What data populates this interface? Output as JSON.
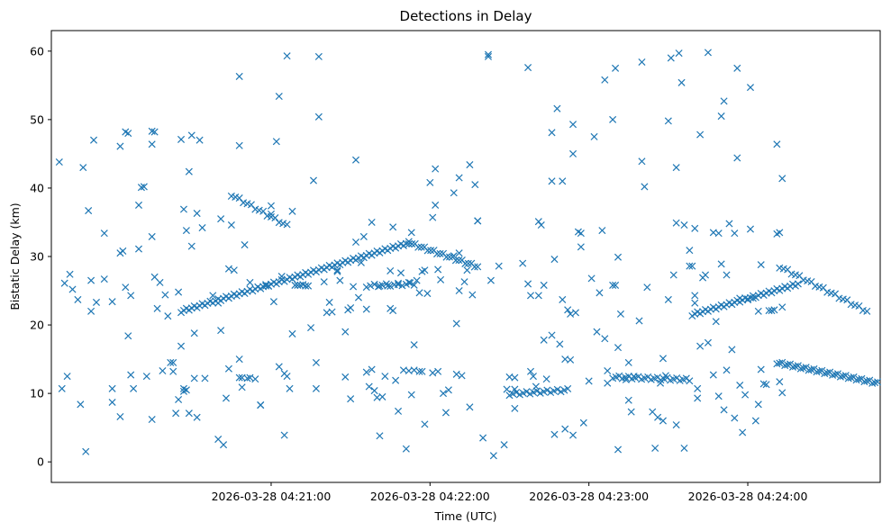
{
  "chart_data": {
    "type": "scatter",
    "title": "Detections in Delay",
    "xlabel": "Time (UTC)",
    "ylabel": "Bistatic Delay (km)",
    "marker": "x",
    "color": "#1f77b4",
    "x_unit": "seconds after 2026-03-28 04:20:00 UTC",
    "xlim": [
      -23,
      290
    ],
    "ylim": [
      -3,
      63
    ],
    "xticks": [
      {
        "value": 60,
        "label": "2026-03-28 04:21:00"
      },
      {
        "value": 120,
        "label": "2026-03-28 04:22:00"
      },
      {
        "value": 180,
        "label": "2026-03-28 04:23:00"
      },
      {
        "value": 240,
        "label": "2026-03-28 04:24:00"
      },
      {
        "value": 300,
        "label": "2026-03-28 04:25:00"
      }
    ],
    "yticks": [
      0,
      10,
      20,
      30,
      40,
      50,
      60
    ],
    "tracks": [
      {
        "name": "track-a",
        "x_start": 26,
        "y_start": 22.0,
        "x_end": 112,
        "y_end": 32.0,
        "step": 1.0
      },
      {
        "name": "track-b",
        "x_start": 112,
        "y_start": 32.0,
        "x_end": 138,
        "y_end": 28.5,
        "step": 1.2
      },
      {
        "name": "track-c",
        "x_start": 45,
        "y_start": 39.0,
        "x_end": 66,
        "y_end": 34.5,
        "step": 1.5
      },
      {
        "name": "track-d",
        "x_start": 219,
        "y_start": 21.5,
        "x_end": 259,
        "y_end": 26.0,
        "step": 1.0
      },
      {
        "name": "track-e",
        "x_start": 251,
        "y_start": 14.5,
        "x_end": 289,
        "y_end": 11.5,
        "step": 1.0
      },
      {
        "name": "track-f",
        "x_start": 150,
        "y_start": 9.9,
        "x_end": 172,
        "y_end": 10.5,
        "step": 1.3
      },
      {
        "name": "track-g",
        "x_start": 189,
        "y_start": 12.4,
        "x_end": 218,
        "y_end": 12.0,
        "step": 1.2
      },
      {
        "name": "track-h",
        "x_start": 96,
        "y_start": 25.7,
        "x_end": 114,
        "y_end": 26.0,
        "step": 1.5
      },
      {
        "name": "track-i",
        "x_start": 252,
        "y_start": 28.5,
        "x_end": 285,
        "y_end": 22.0,
        "step": 1.5
      }
    ],
    "points": [
      [
        -20,
        43.8
      ],
      [
        -19,
        10.7
      ],
      [
        -18,
        26.1
      ],
      [
        -17,
        12.5
      ],
      [
        -16,
        27.4
      ],
      [
        -15,
        25.2
      ],
      [
        -13,
        23.7
      ],
      [
        -12,
        8.4
      ],
      [
        -11,
        43.0
      ],
      [
        -10,
        1.5
      ],
      [
        -9,
        36.7
      ],
      [
        -8,
        22.0
      ],
      [
        -8,
        26.5
      ],
      [
        -7,
        47.0
      ],
      [
        -6,
        23.3
      ],
      [
        -3,
        33.4
      ],
      [
        -3,
        26.7
      ],
      [
        0,
        23.4
      ],
      [
        0,
        10.7
      ],
      [
        0,
        8.7
      ],
      [
        3,
        46.1
      ],
      [
        3,
        6.6
      ],
      [
        3,
        30.5
      ],
      [
        4,
        30.8
      ],
      [
        5,
        48.2
      ],
      [
        5,
        25.5
      ],
      [
        6,
        48.0
      ],
      [
        6,
        18.4
      ],
      [
        7,
        24.3
      ],
      [
        7,
        12.7
      ],
      [
        8,
        10.7
      ],
      [
        10,
        31.1
      ],
      [
        10,
        37.5
      ],
      [
        11,
        40.1
      ],
      [
        12,
        40.2
      ],
      [
        13,
        12.5
      ],
      [
        15,
        32.9
      ],
      [
        15,
        46.4
      ],
      [
        15,
        48.3
      ],
      [
        15,
        6.2
      ],
      [
        16,
        27.0
      ],
      [
        16,
        48.2
      ],
      [
        17,
        22.4
      ],
      [
        18,
        26.2
      ],
      [
        19,
        13.3
      ],
      [
        20,
        24.4
      ],
      [
        21,
        21.3
      ],
      [
        22,
        14.5
      ],
      [
        23,
        14.5
      ],
      [
        23,
        13.2
      ],
      [
        24,
        7.1
      ],
      [
        25,
        9.1
      ],
      [
        25,
        24.8
      ],
      [
        26,
        16.9
      ],
      [
        26,
        47.1
      ],
      [
        27,
        10.3
      ],
      [
        27,
        10.7
      ],
      [
        27,
        36.9
      ],
      [
        28,
        10.5
      ],
      [
        28,
        33.8
      ],
      [
        29,
        42.4
      ],
      [
        29,
        7.1
      ],
      [
        30,
        31.5
      ],
      [
        30,
        47.7
      ],
      [
        31,
        12.2
      ],
      [
        31,
        18.8
      ],
      [
        32,
        6.5
      ],
      [
        32,
        36.3
      ],
      [
        33,
        47.0
      ],
      [
        34,
        34.2
      ],
      [
        35,
        12.2
      ],
      [
        38,
        24.3
      ],
      [
        40,
        3.3
      ],
      [
        40,
        23.2
      ],
      [
        41,
        35.5
      ],
      [
        41,
        19.2
      ],
      [
        42,
        2.5
      ],
      [
        43,
        9.3
      ],
      [
        44,
        28.2
      ],
      [
        44,
        13.6
      ],
      [
        45,
        34.6
      ],
      [
        46,
        28.0
      ],
      [
        48,
        56.3
      ],
      [
        48,
        46.2
      ],
      [
        48,
        12.3
      ],
      [
        48,
        15.0
      ],
      [
        49,
        10.9
      ],
      [
        49,
        12.3
      ],
      [
        50,
        31.7
      ],
      [
        51,
        12.2
      ],
      [
        52,
        12.3
      ],
      [
        52,
        26.2
      ],
      [
        54,
        12.1
      ],
      [
        56,
        8.3
      ],
      [
        56,
        8.3
      ],
      [
        58,
        25.7
      ],
      [
        59,
        25.7
      ],
      [
        60,
        37.4
      ],
      [
        60,
        36.2
      ],
      [
        61,
        23.4
      ],
      [
        62,
        46.8
      ],
      [
        63,
        53.4
      ],
      [
        63,
        13.9
      ],
      [
        64,
        27.1
      ],
      [
        65,
        3.9
      ],
      [
        65,
        12.9
      ],
      [
        66,
        12.5
      ],
      [
        66,
        59.3
      ],
      [
        67,
        10.7
      ],
      [
        68,
        18.7
      ],
      [
        68,
        36.6
      ],
      [
        69,
        25.8
      ],
      [
        70,
        25.8
      ],
      [
        71,
        25.8
      ],
      [
        72,
        25.9
      ],
      [
        73,
        25.7
      ],
      [
        74,
        25.7
      ],
      [
        75,
        19.6
      ],
      [
        76,
        41.1
      ],
      [
        77,
        14.5
      ],
      [
        77,
        10.7
      ],
      [
        78,
        50.4
      ],
      [
        78,
        59.2
      ],
      [
        80,
        26.3
      ],
      [
        81,
        21.8
      ],
      [
        82,
        23.3
      ],
      [
        83,
        21.9
      ],
      [
        85,
        28.0
      ],
      [
        85,
        27.8
      ],
      [
        86,
        26.5
      ],
      [
        88,
        12.4
      ],
      [
        88,
        19.0
      ],
      [
        89,
        22.2
      ],
      [
        90,
        9.2
      ],
      [
        90,
        22.5
      ],
      [
        91,
        25.6
      ],
      [
        92,
        32.1
      ],
      [
        92,
        44.1
      ],
      [
        93,
        24.0
      ],
      [
        94,
        29.1
      ],
      [
        95,
        32.9
      ],
      [
        96,
        13.1
      ],
      [
        96,
        22.3
      ],
      [
        97,
        11.0
      ],
      [
        98,
        35.0
      ],
      [
        98,
        13.5
      ],
      [
        99,
        10.4
      ],
      [
        100,
        9.4
      ],
      [
        101,
        25.7
      ],
      [
        101,
        3.8
      ],
      [
        102,
        9.5
      ],
      [
        103,
        12.5
      ],
      [
        104,
        25.7
      ],
      [
        105,
        27.9
      ],
      [
        105,
        22.4
      ],
      [
        106,
        34.3
      ],
      [
        106,
        22.1
      ],
      [
        107,
        11.9
      ],
      [
        108,
        25.9
      ],
      [
        108,
        7.4
      ],
      [
        109,
        27.6
      ],
      [
        110,
        13.4
      ],
      [
        111,
        1.9
      ],
      [
        112,
        26.2
      ],
      [
        112,
        13.3
      ],
      [
        113,
        33.5
      ],
      [
        113,
        9.8
      ],
      [
        114,
        17.1
      ],
      [
        114,
        13.4
      ],
      [
        115,
        26.5
      ],
      [
        116,
        13.2
      ],
      [
        116,
        24.7
      ],
      [
        117,
        27.8
      ],
      [
        117,
        13.2
      ],
      [
        118,
        28.0
      ],
      [
        118,
        5.5
      ],
      [
        119,
        24.6
      ],
      [
        120,
        40.8
      ],
      [
        121,
        13.0
      ],
      [
        121,
        35.7
      ],
      [
        122,
        42.8
      ],
      [
        122,
        37.5
      ],
      [
        123,
        28.1
      ],
      [
        123,
        13.2
      ],
      [
        124,
        26.6
      ],
      [
        125,
        10.0
      ],
      [
        126,
        7.2
      ],
      [
        127,
        10.5
      ],
      [
        129,
        39.3
      ],
      [
        129,
        30.1
      ],
      [
        130,
        20.2
      ],
      [
        130,
        12.8
      ],
      [
        131,
        25.0
      ],
      [
        131,
        30.5
      ],
      [
        131,
        41.5
      ],
      [
        132,
        12.6
      ],
      [
        133,
        26.3
      ],
      [
        134,
        28.0
      ],
      [
        135,
        43.4
      ],
      [
        135,
        8.0
      ],
      [
        136,
        24.4
      ],
      [
        137,
        40.5
      ],
      [
        138,
        35.2
      ],
      [
        138,
        35.2
      ],
      [
        140,
        3.5
      ],
      [
        142,
        59.5
      ],
      [
        142,
        59.2
      ],
      [
        143,
        26.5
      ],
      [
        144,
        0.9
      ],
      [
        146,
        28.6
      ],
      [
        148,
        2.5
      ],
      [
        149,
        10.6
      ],
      [
        150,
        12.4
      ],
      [
        152,
        12.3
      ],
      [
        152,
        7.8
      ],
      [
        152,
        10.6
      ],
      [
        155,
        29.0
      ],
      [
        157,
        57.6
      ],
      [
        157,
        26.0
      ],
      [
        158,
        24.3
      ],
      [
        158,
        13.2
      ],
      [
        159,
        12.5
      ],
      [
        160,
        11.0
      ],
      [
        161,
        24.3
      ],
      [
        161,
        35.1
      ],
      [
        162,
        34.6
      ],
      [
        163,
        25.8
      ],
      [
        163,
        17.8
      ],
      [
        164,
        12.1
      ],
      [
        166,
        48.1
      ],
      [
        166,
        41.0
      ],
      [
        166,
        18.5
      ],
      [
        167,
        29.6
      ],
      [
        167,
        4.0
      ],
      [
        168,
        51.6
      ],
      [
        169,
        17.2
      ],
      [
        170,
        41.0
      ],
      [
        170,
        23.7
      ],
      [
        171,
        4.8
      ],
      [
        171,
        15.0
      ],
      [
        172,
        22.2
      ],
      [
        173,
        14.9
      ],
      [
        173,
        21.6
      ],
      [
        174,
        49.3
      ],
      [
        174,
        45.0
      ],
      [
        174,
        3.9
      ],
      [
        175,
        21.8
      ],
      [
        176,
        33.6
      ],
      [
        177,
        33.4
      ],
      [
        177,
        31.4
      ],
      [
        178,
        5.7
      ],
      [
        180,
        11.8
      ],
      [
        181,
        26.8
      ],
      [
        182,
        47.5
      ],
      [
        183,
        19.0
      ],
      [
        184,
        24.7
      ],
      [
        185,
        33.8
      ],
      [
        186,
        55.8
      ],
      [
        186,
        18.0
      ],
      [
        187,
        11.5
      ],
      [
        187,
        13.3
      ],
      [
        189,
        50.0
      ],
      [
        189,
        25.8
      ],
      [
        190,
        57.5
      ],
      [
        190,
        25.8
      ],
      [
        191,
        1.8
      ],
      [
        191,
        29.9
      ],
      [
        191,
        16.7
      ],
      [
        192,
        21.6
      ],
      [
        194,
        12.0
      ],
      [
        195,
        9.0
      ],
      [
        195,
        14.5
      ],
      [
        196,
        7.3
      ],
      [
        197,
        12.5
      ],
      [
        199,
        20.6
      ],
      [
        200,
        58.4
      ],
      [
        200,
        43.9
      ],
      [
        201,
        40.2
      ],
      [
        202,
        25.5
      ],
      [
        204,
        7.3
      ],
      [
        205,
        2.0
      ],
      [
        206,
        6.5
      ],
      [
        207,
        11.5
      ],
      [
        208,
        6.0
      ],
      [
        208,
        15.1
      ],
      [
        209,
        12.6
      ],
      [
        210,
        49.8
      ],
      [
        210,
        23.7
      ],
      [
        211,
        59.0
      ],
      [
        212,
        27.3
      ],
      [
        213,
        5.4
      ],
      [
        213,
        43.0
      ],
      [
        213,
        34.9
      ],
      [
        214,
        59.7
      ],
      [
        215,
        55.4
      ],
      [
        216,
        2.0
      ],
      [
        216,
        34.6
      ],
      [
        218,
        28.6
      ],
      [
        218,
        30.9
      ],
      [
        219,
        28.6
      ],
      [
        220,
        34.1
      ],
      [
        220,
        24.3
      ],
      [
        220,
        23.2
      ],
      [
        221,
        10.7
      ],
      [
        221,
        9.3
      ],
      [
        222,
        47.8
      ],
      [
        222,
        16.9
      ],
      [
        223,
        26.9
      ],
      [
        224,
        27.3
      ],
      [
        225,
        59.8
      ],
      [
        225,
        17.4
      ],
      [
        227,
        33.5
      ],
      [
        227,
        12.7
      ],
      [
        228,
        20.5
      ],
      [
        229,
        33.4
      ],
      [
        229,
        9.6
      ],
      [
        230,
        50.5
      ],
      [
        230,
        28.9
      ],
      [
        231,
        52.7
      ],
      [
        231,
        7.6
      ],
      [
        232,
        27.3
      ],
      [
        232,
        13.4
      ],
      [
        233,
        34.8
      ],
      [
        234,
        16.4
      ],
      [
        235,
        33.4
      ],
      [
        235,
        6.4
      ],
      [
        236,
        57.5
      ],
      [
        236,
        44.4
      ],
      [
        237,
        23.9
      ],
      [
        237,
        11.2
      ],
      [
        238,
        4.3
      ],
      [
        239,
        9.8
      ],
      [
        240,
        23.8
      ],
      [
        241,
        54.7
      ],
      [
        241,
        34.0
      ],
      [
        242,
        23.9
      ],
      [
        243,
        6.0
      ],
      [
        244,
        22.0
      ],
      [
        244,
        8.4
      ],
      [
        245,
        28.8
      ],
      [
        245,
        13.5
      ],
      [
        246,
        11.4
      ],
      [
        247,
        11.3
      ],
      [
        248,
        22.1
      ],
      [
        249,
        22.1
      ],
      [
        250,
        22.2
      ],
      [
        251,
        33.3
      ],
      [
        251,
        46.4
      ],
      [
        252,
        33.5
      ],
      [
        252,
        11.7
      ],
      [
        253,
        41.4
      ],
      [
        253,
        22.6
      ],
      [
        253,
        10.1
      ]
    ]
  }
}
